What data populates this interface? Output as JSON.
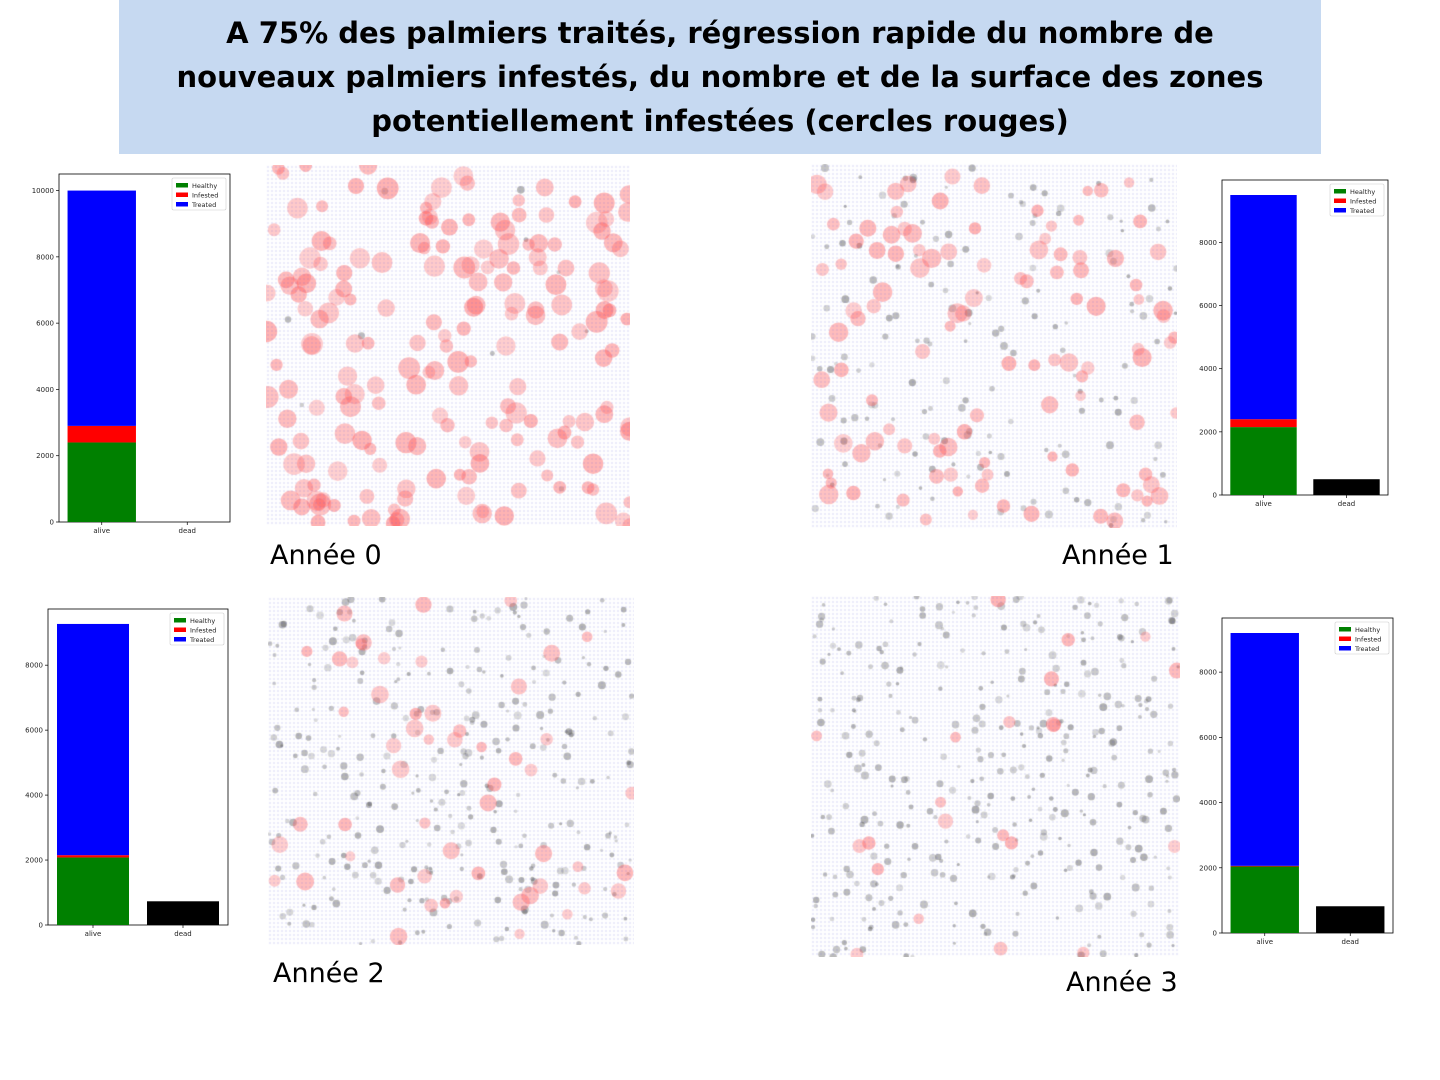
{
  "title": "A 75% des palmiers traités, régression rapide du nombre de nouveaux palmiers infestés, du nombre et de la surface des zones potentiellement infestées (cercles rouges)",
  "panels": [
    {
      "year_label": "Année 0",
      "infection_density": "high"
    },
    {
      "year_label": "Année 1",
      "infection_density": "medium"
    },
    {
      "year_label": "Année 2",
      "infection_density": "low"
    },
    {
      "year_label": "Année 3",
      "infection_density": "very-low"
    }
  ],
  "colors": {
    "healthy": "#008000",
    "infested": "#ff0000",
    "treated": "#0000ff",
    "dead": "#000000",
    "infection_circle": "#ff6b6b",
    "grid_dot": "#6a6ad8",
    "title_background": "#c6d9f1"
  },
  "chart_data": [
    {
      "type": "bar",
      "stacked": true,
      "categories": [
        "alive",
        "dead"
      ],
      "series": [
        {
          "name": "Healthy",
          "values": [
            2400,
            0
          ]
        },
        {
          "name": "Infested",
          "values": [
            500,
            0
          ]
        },
        {
          "name": "Treated",
          "values": [
            7100,
            0
          ]
        }
      ],
      "dead_value": 0,
      "yticks": [
        0,
        2000,
        4000,
        6000,
        8000,
        10000
      ],
      "ylim": [
        0,
        10500
      ],
      "legend": [
        "Healthy",
        "Infested",
        "Treated"
      ],
      "legend_position": "top-right"
    },
    {
      "type": "bar",
      "stacked": true,
      "categories": [
        "alive",
        "dead"
      ],
      "series": [
        {
          "name": "Healthy",
          "values": [
            2150,
            0
          ]
        },
        {
          "name": "Infested",
          "values": [
            250,
            0
          ]
        },
        {
          "name": "Treated",
          "values": [
            7100,
            0
          ]
        }
      ],
      "dead_value": 500,
      "yticks": [
        0,
        2000,
        4000,
        6000,
        8000
      ],
      "ylim": [
        0,
        9975
      ],
      "legend": [
        "Healthy",
        "Infested",
        "Treated"
      ],
      "legend_position": "top-right"
    },
    {
      "type": "bar",
      "stacked": true,
      "categories": [
        "alive",
        "dead"
      ],
      "series": [
        {
          "name": "Healthy",
          "values": [
            2080,
            0
          ]
        },
        {
          "name": "Infested",
          "values": [
            70,
            0
          ]
        },
        {
          "name": "Treated",
          "values": [
            7120,
            0
          ]
        }
      ],
      "dead_value": 730,
      "yticks": [
        0,
        2000,
        4000,
        6000,
        8000
      ],
      "ylim": [
        0,
        9730
      ],
      "legend": [
        "Healthy",
        "Infested",
        "Treated"
      ],
      "legend_position": "top-right"
    },
    {
      "type": "bar",
      "stacked": true,
      "categories": [
        "alive",
        "dead"
      ],
      "series": [
        {
          "name": "Healthy",
          "values": [
            2040,
            0
          ]
        },
        {
          "name": "Infested",
          "values": [
            20,
            0
          ]
        },
        {
          "name": "Treated",
          "values": [
            7140,
            0
          ]
        }
      ],
      "dead_value": 820,
      "yticks": [
        0,
        2000,
        4000,
        6000,
        8000
      ],
      "ylim": [
        0,
        9660
      ],
      "legend": [
        "Healthy",
        "Infested",
        "Treated"
      ],
      "legend_position": "top-right"
    }
  ]
}
